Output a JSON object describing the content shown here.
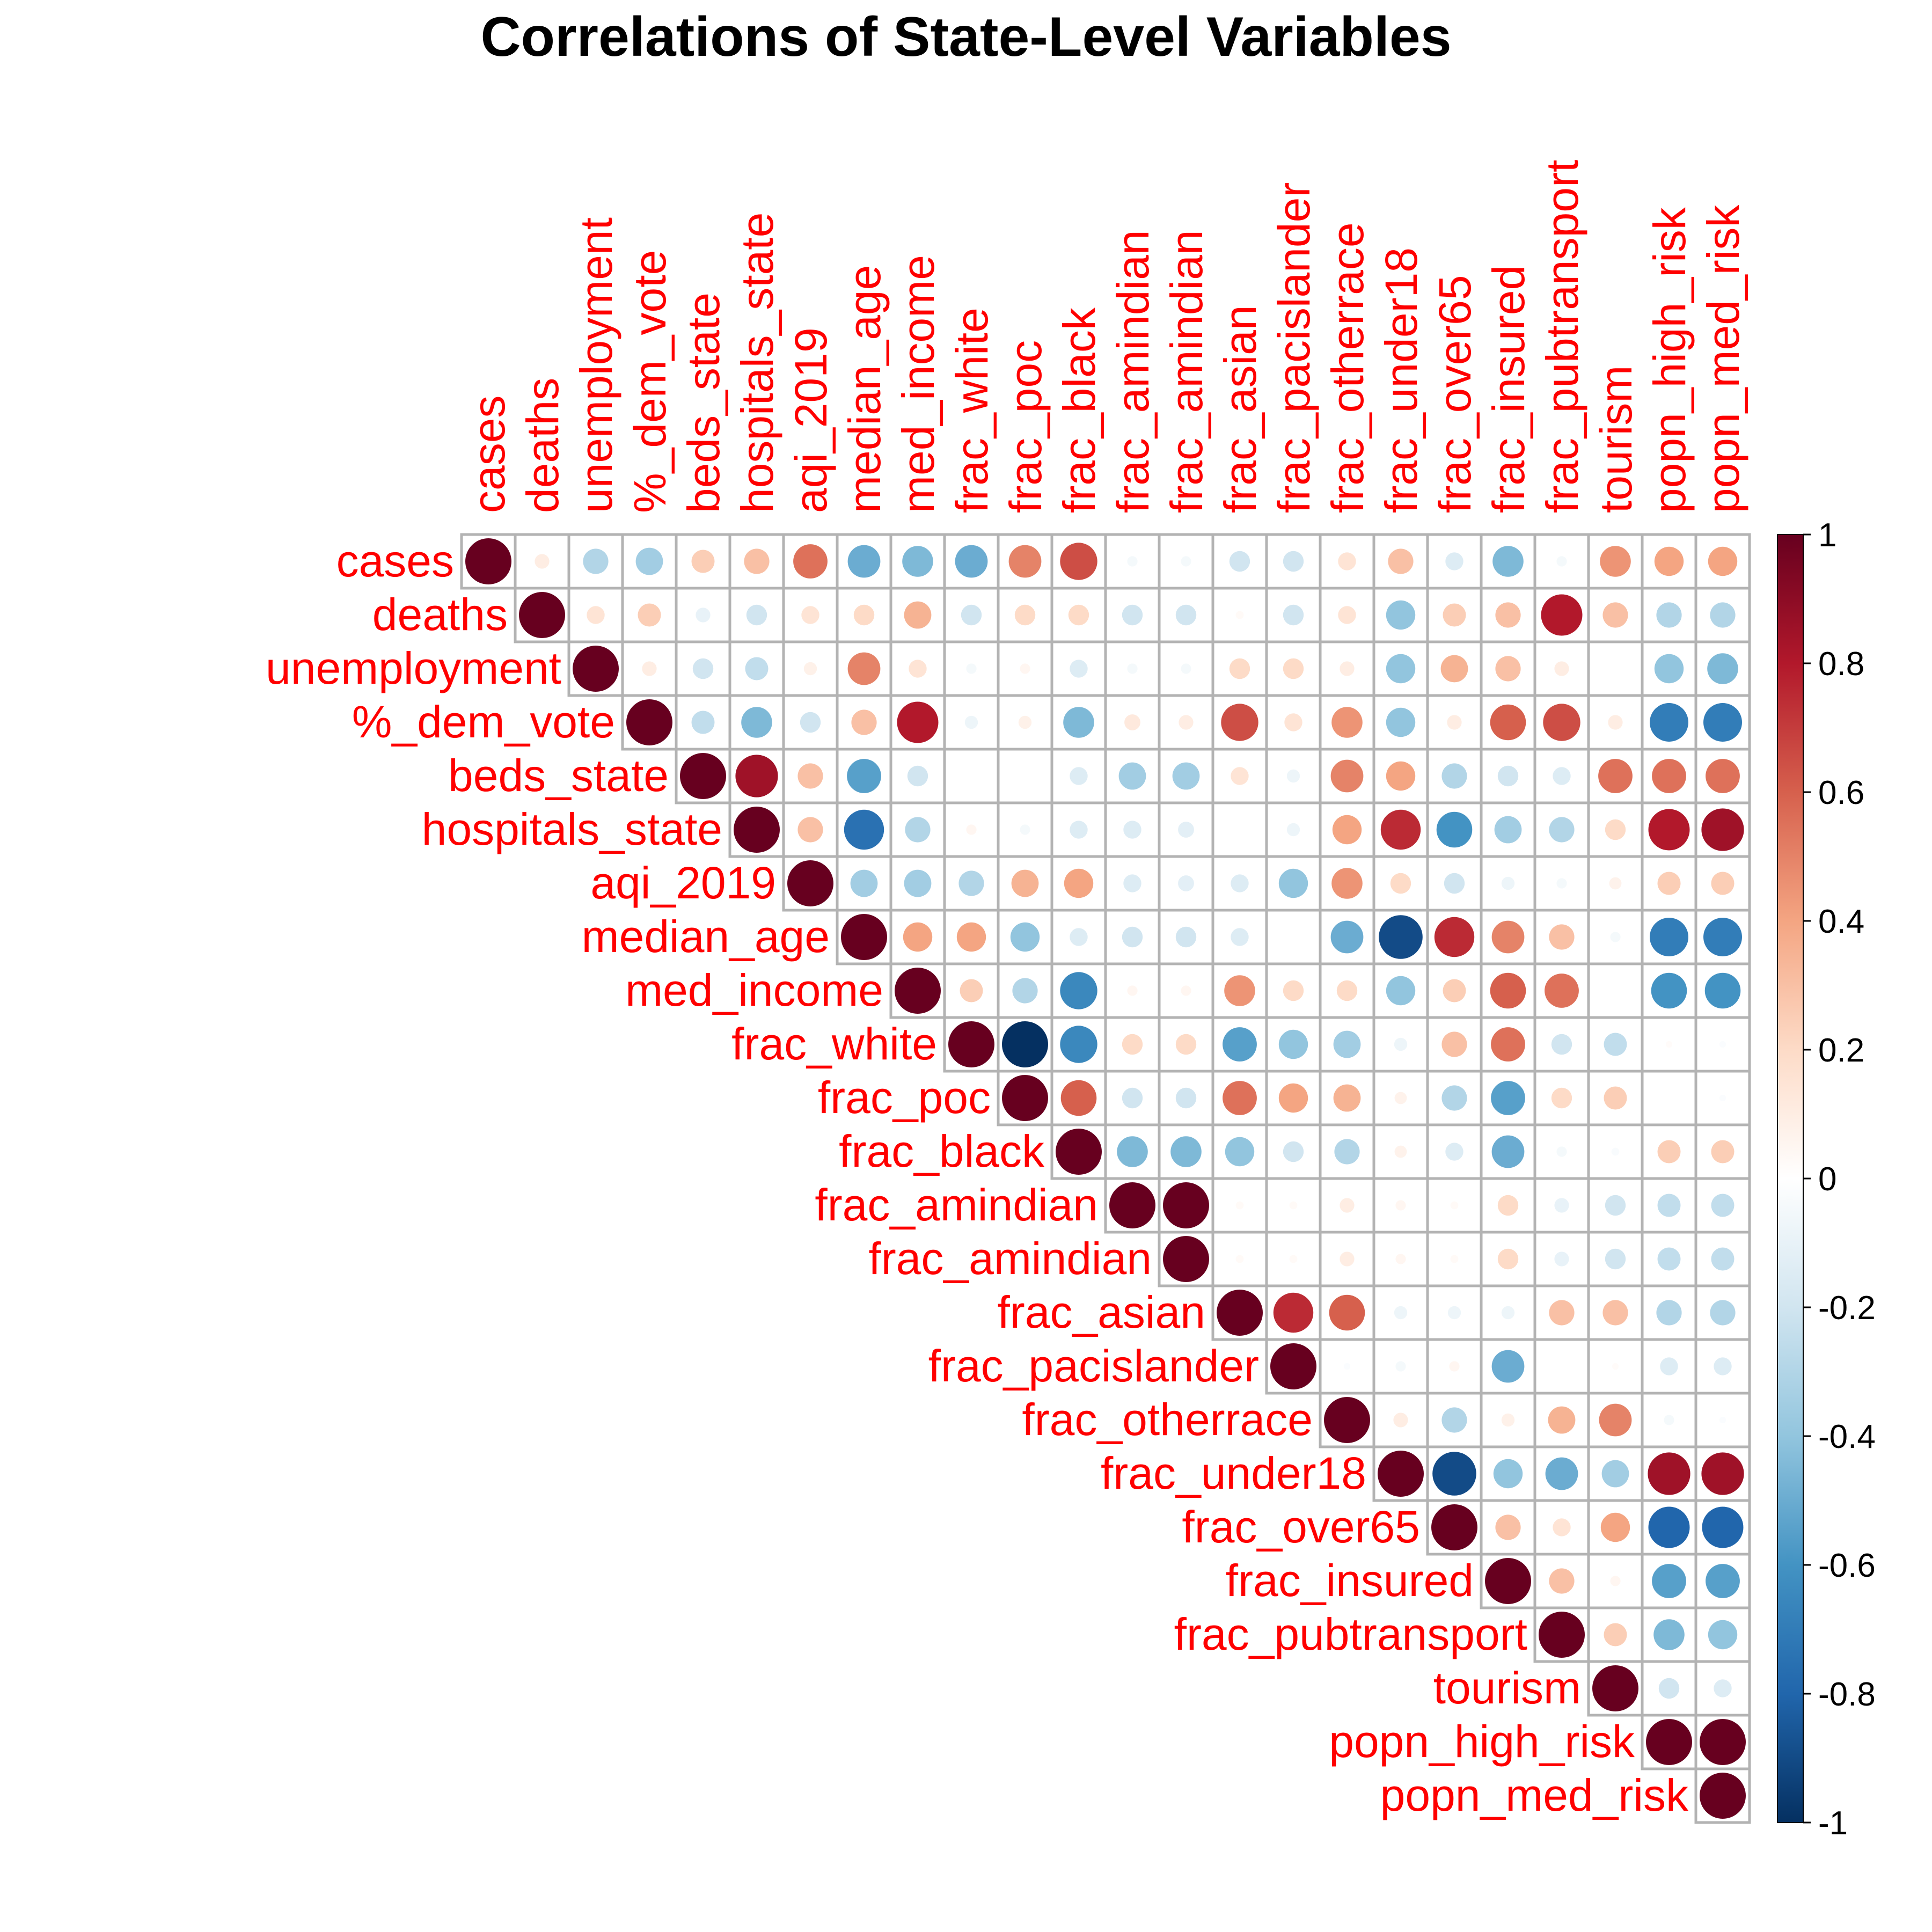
{
  "chart_data": {
    "type": "heatmap",
    "subtype": "correlation-circle-upper",
    "title": "Correlations of State-Level Variables",
    "label_color": "#ff0000",
    "row_labels": [
      "cases",
      "deaths",
      "unemployment",
      "%_dem_vote",
      "beds_state",
      "hospitals_state",
      "aqi_2019",
      "median_age",
      "med_income",
      "frac_white",
      "frac_poc",
      "frac_black",
      "frac_amindian",
      "frac_amindian",
      "frac_asian",
      "frac_pacislander",
      "frac_otherrace",
      "frac_under18",
      "frac_over65",
      "frac_insured",
      "frac_pubtransport",
      "tourism",
      "popn_high_risk",
      "popn_med_risk"
    ],
    "col_labels": [
      "cases",
      "deaths",
      "unemployment",
      "%_dem_vote",
      "beds_state",
      "hospitals_state",
      "aqi_2019",
      "median_age",
      "med_income",
      "frac_white",
      "frac_poc",
      "frac_black",
      "frac_amindian",
      "frac_amindian",
      "frac_asian",
      "frac_pacislander",
      "frac_otherrace",
      "frac_under18",
      "frac_over65",
      "frac_insured",
      "frac_pubtransport",
      "tourism",
      "popn_high_risk",
      "popn_med_risk"
    ],
    "matrix": [
      [
        1,
        0.1,
        -0.3,
        -0.35,
        0.25,
        0.3,
        0.55,
        -0.5,
        -0.45,
        -0.5,
        0.5,
        0.65,
        -0.05,
        -0.05,
        -0.2,
        -0.2,
        0.15,
        0.3,
        -0.15,
        -0.45,
        -0.05,
        0.45,
        0.4,
        0.4
      ],
      [
        null,
        1,
        0.15,
        0.25,
        -0.1,
        -0.2,
        0.15,
        0.2,
        0.35,
        -0.2,
        0.2,
        0.2,
        -0.2,
        -0.2,
        0.03,
        -0.2,
        0.15,
        -0.4,
        0.25,
        0.3,
        0.8,
        0.3,
        -0.3,
        -0.3
      ],
      [
        null,
        null,
        1,
        0.1,
        -0.2,
        -0.25,
        0.08,
        0.5,
        0.15,
        -0.05,
        0.05,
        -0.15,
        -0.05,
        -0.05,
        0.2,
        0.2,
        0.1,
        -0.4,
        0.35,
        0.3,
        0.1,
        0,
        -0.4,
        -0.45
      ],
      [
        null,
        null,
        null,
        1,
        -0.25,
        -0.45,
        -0.2,
        0.3,
        0.8,
        -0.08,
        0.08,
        -0.45,
        0.12,
        0.1,
        0.65,
        0.15,
        0.45,
        -0.4,
        0.1,
        0.6,
        0.65,
        0.1,
        -0.7,
        -0.7
      ],
      [
        null,
        null,
        null,
        null,
        1,
        0.85,
        0.3,
        -0.55,
        -0.2,
        0,
        0,
        -0.15,
        -0.35,
        -0.35,
        0.15,
        -0.08,
        0.5,
        0.4,
        -0.3,
        -0.2,
        -0.15,
        0.55,
        0.55,
        0.55
      ],
      [
        null,
        null,
        null,
        null,
        null,
        1,
        0.3,
        -0.75,
        -0.3,
        0.05,
        -0.05,
        -0.15,
        -0.15,
        -0.12,
        0,
        -0.08,
        0.4,
        0.75,
        -0.6,
        -0.35,
        -0.3,
        0.2,
        0.8,
        0.85
      ],
      [
        null,
        null,
        null,
        null,
        null,
        null,
        1,
        -0.35,
        -0.35,
        -0.3,
        0.35,
        0.4,
        -0.15,
        -0.12,
        -0.15,
        -0.4,
        0.45,
        0.2,
        -0.2,
        -0.08,
        -0.05,
        0.07,
        0.25,
        0.25
      ],
      [
        null,
        null,
        null,
        null,
        null,
        null,
        null,
        1,
        0.4,
        0.4,
        -0.4,
        -0.15,
        -0.2,
        -0.2,
        -0.15,
        0,
        -0.5,
        -0.9,
        0.75,
        0.5,
        0.3,
        -0.05,
        -0.7,
        -0.7
      ],
      [
        null,
        null,
        null,
        null,
        null,
        null,
        null,
        null,
        1,
        0.25,
        -0.3,
        -0.65,
        0.05,
        0.05,
        0.45,
        0.2,
        0.2,
        -0.4,
        0.25,
        0.6,
        0.55,
        0,
        -0.6,
        -0.6
      ],
      [
        null,
        null,
        null,
        null,
        null,
        null,
        null,
        null,
        null,
        1,
        -1,
        -0.65,
        0.2,
        0.2,
        -0.55,
        -0.4,
        -0.35,
        -0.08,
        0.3,
        0.55,
        -0.2,
        -0.25,
        0.02,
        -0.02
      ],
      [
        null,
        null,
        null,
        null,
        null,
        null,
        null,
        null,
        null,
        null,
        1,
        0.6,
        -0.2,
        -0.2,
        0.55,
        0.4,
        0.35,
        0.07,
        -0.3,
        -0.55,
        0.2,
        0.25,
        0,
        -0.02
      ],
      [
        null,
        null,
        null,
        null,
        null,
        null,
        null,
        null,
        null,
        null,
        null,
        1,
        -0.45,
        -0.45,
        -0.4,
        -0.2,
        -0.3,
        0.07,
        -0.15,
        -0.5,
        -0.05,
        -0.03,
        0.25,
        0.25
      ],
      [
        null,
        null,
        null,
        null,
        null,
        null,
        null,
        null,
        null,
        null,
        null,
        null,
        1,
        1,
        0.03,
        0.03,
        0.1,
        0.05,
        0.03,
        0.2,
        -0.1,
        -0.2,
        -0.25,
        -0.25
      ],
      [
        null,
        null,
        null,
        null,
        null,
        null,
        null,
        null,
        null,
        null,
        null,
        null,
        null,
        1,
        0.03,
        0.03,
        0.1,
        0.05,
        0.03,
        0.2,
        -0.1,
        -0.2,
        -0.25,
        -0.25
      ],
      [
        null,
        null,
        null,
        null,
        null,
        null,
        null,
        null,
        null,
        null,
        null,
        null,
        null,
        null,
        1,
        0.75,
        0.6,
        -0.08,
        -0.08,
        -0.08,
        0.3,
        0.3,
        -0.3,
        -0.3
      ],
      [
        null,
        null,
        null,
        null,
        null,
        null,
        null,
        null,
        null,
        null,
        null,
        null,
        null,
        null,
        null,
        1,
        -0.02,
        -0.05,
        0.05,
        -0.5,
        0,
        0.02,
        -0.15,
        -0.15
      ],
      [
        null,
        null,
        null,
        null,
        null,
        null,
        null,
        null,
        null,
        null,
        null,
        null,
        null,
        null,
        null,
        null,
        1,
        0.1,
        -0.3,
        0.08,
        0.35,
        0.5,
        -0.05,
        -0.02
      ],
      [
        null,
        null,
        null,
        null,
        null,
        null,
        null,
        null,
        null,
        null,
        null,
        null,
        null,
        null,
        null,
        null,
        null,
        1,
        -0.9,
        -0.4,
        -0.5,
        -0.35,
        0.85,
        0.85
      ],
      [
        null,
        null,
        null,
        null,
        null,
        null,
        null,
        null,
        null,
        null,
        null,
        null,
        null,
        null,
        null,
        null,
        null,
        null,
        1,
        0.3,
        0.15,
        0.4,
        -0.8,
        -0.8
      ],
      [
        null,
        null,
        null,
        null,
        null,
        null,
        null,
        null,
        null,
        null,
        null,
        null,
        null,
        null,
        null,
        null,
        null,
        null,
        null,
        1,
        0.3,
        0.05,
        -0.55,
        -0.55
      ],
      [
        null,
        null,
        null,
        null,
        null,
        null,
        null,
        null,
        null,
        null,
        null,
        null,
        null,
        null,
        null,
        null,
        null,
        null,
        null,
        null,
        1,
        0.25,
        -0.45,
        -0.4
      ],
      [
        null,
        null,
        null,
        null,
        null,
        null,
        null,
        null,
        null,
        null,
        null,
        null,
        null,
        null,
        null,
        null,
        null,
        null,
        null,
        null,
        null,
        1,
        -0.2,
        -0.15
      ],
      [
        null,
        null,
        null,
        null,
        null,
        null,
        null,
        null,
        null,
        null,
        null,
        null,
        null,
        null,
        null,
        null,
        null,
        null,
        null,
        null,
        null,
        null,
        1,
        1
      ],
      [
        null,
        null,
        null,
        null,
        null,
        null,
        null,
        null,
        null,
        null,
        null,
        null,
        null,
        null,
        null,
        null,
        null,
        null,
        null,
        null,
        null,
        null,
        null,
        1
      ]
    ],
    "legend": {
      "position": "right",
      "range": [
        -1,
        1
      ],
      "ticks": [
        "1",
        "0.8",
        "0.6",
        "0.4",
        "0.2",
        "0",
        "-0.2",
        "-0.4",
        "-0.6",
        "-0.8",
        "-1"
      ],
      "colors": [
        "#67001f",
        "#b2182b",
        "#d6604d",
        "#f4a582",
        "#fddbc7",
        "#ffffff",
        "#d1e5f0",
        "#92c5de",
        "#4393c3",
        "#2166ac",
        "#053061"
      ]
    }
  }
}
